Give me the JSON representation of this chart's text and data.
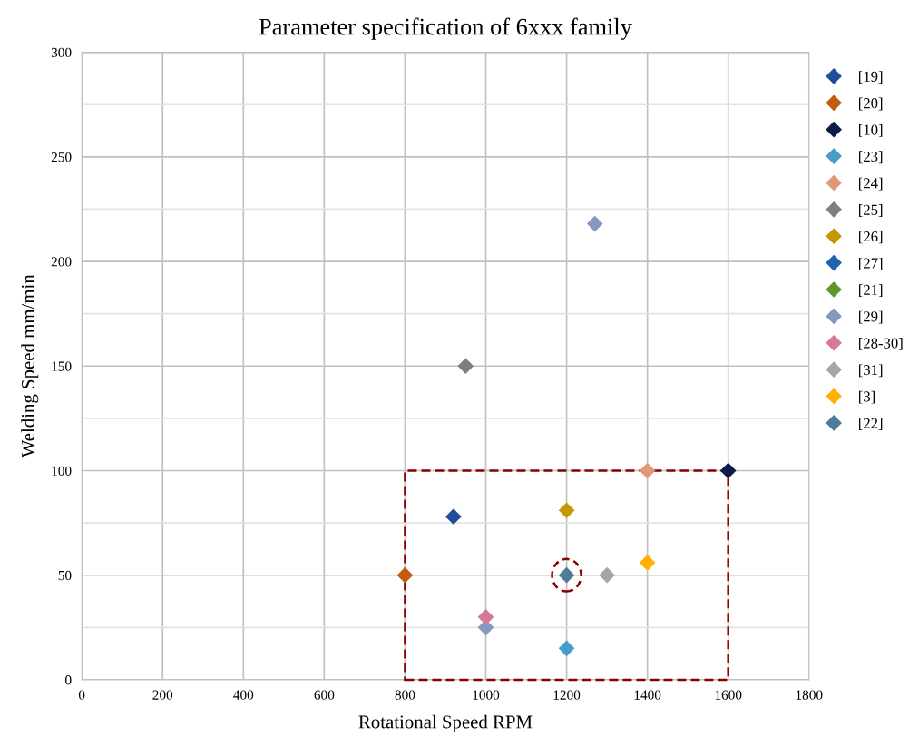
{
  "chart_data": {
    "type": "scatter",
    "title": "Parameter specification of 6xxx family",
    "xlabel": "Rotational Speed RPM",
    "ylabel": "Welding Speed mm/min",
    "xlim": [
      0,
      1800
    ],
    "xticks": [
      0,
      200,
      400,
      600,
      800,
      1000,
      1200,
      1400,
      1600,
      1800
    ],
    "ylim": [
      0,
      300
    ],
    "yticks": [
      0,
      {
        "value": 25,
        "label": null
      },
      50,
      {
        "value": 75,
        "label": null
      },
      100,
      {
        "value": 125,
        "label": null
      },
      150,
      {
        "value": 175,
        "label": null
      },
      200,
      {
        "value": 225,
        "label": null
      },
      250,
      {
        "value": 275,
        "label": null
      },
      300
    ],
    "grid": true,
    "legend": "right",
    "marker": "diamond",
    "series": [
      {
        "name": "[19]",
        "color": "#1f4e9a",
        "x": [
          920
        ],
        "values": [
          78
        ]
      },
      {
        "name": "[20]",
        "color": "#c55a11",
        "x": [
          800
        ],
        "values": [
          50
        ]
      },
      {
        "name": "[10]",
        "color": "#0d1a4a",
        "x": [
          1600
        ],
        "values": [
          100
        ]
      },
      {
        "name": "[23]",
        "color": "#4a9cc8",
        "x": [
          1200
        ],
        "values": [
          15
        ]
      },
      {
        "name": "[24]",
        "color": "#e0977a",
        "x": [
          1400
        ],
        "values": [
          100
        ]
      },
      {
        "name": "[25]",
        "color": "#7f7f7f",
        "x": [
          950
        ],
        "values": [
          150
        ]
      },
      {
        "name": "[26]",
        "color": "#c49a00",
        "x": [
          1200
        ],
        "values": [
          81
        ]
      },
      {
        "name": "[27]",
        "color": "#1f63b0"
      },
      {
        "name": "[21]",
        "color": "#5b9a2a"
      },
      {
        "name": "[29]",
        "color": "#8499bd",
        "x": [
          1270,
          1000
        ],
        "values": [
          218,
          25
        ]
      },
      {
        "name": "[28-30]",
        "color": "#d6789a",
        "x": [
          1000
        ],
        "values": [
          30
        ]
      },
      {
        "name": "[31]",
        "color": "#a6a6a6",
        "x": [
          1300
        ],
        "values": [
          50
        ]
      },
      {
        "name": "[3]",
        "color": "#ffb000",
        "x": [
          1400
        ],
        "values": [
          56
        ]
      },
      {
        "name": "[22]",
        "color": "#4f7a9a",
        "x": [
          1200
        ],
        "values": [
          50
        ]
      }
    ]
  }
}
